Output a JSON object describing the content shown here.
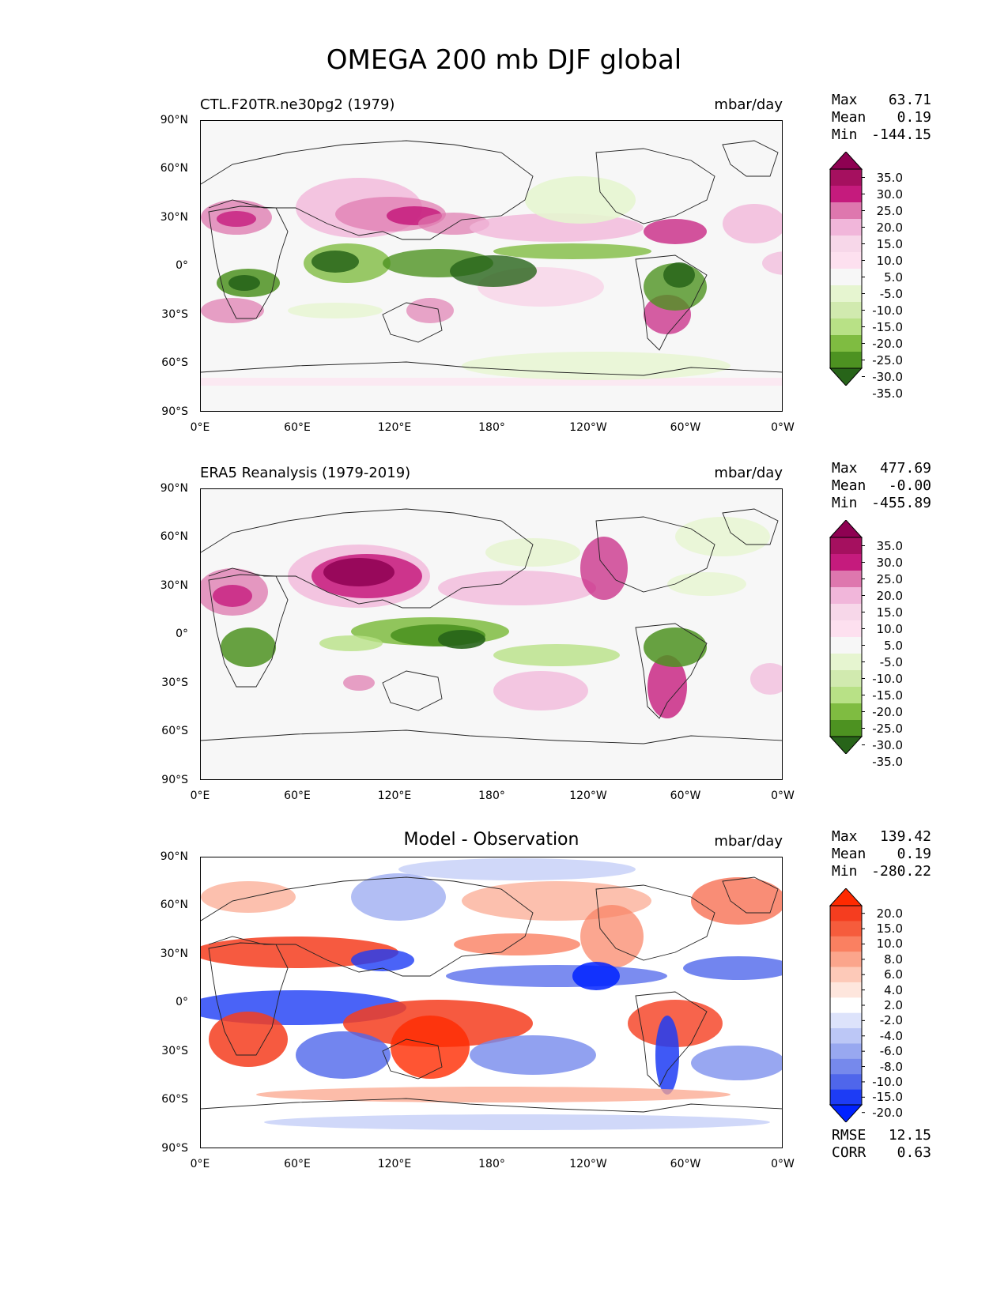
{
  "figure_title": "OMEGA 200 mb DJF global",
  "lat_ticks": [
    "90°N",
    "60°N",
    "30°N",
    "0°",
    "30°S",
    "60°S",
    "90°S"
  ],
  "lon_ticks": [
    "0°E",
    "60°E",
    "120°E",
    "180°",
    "120°W",
    "60°W",
    "0°W"
  ],
  "panels": [
    {
      "left_title": "CTL.F20TR.ne30pg2 (1979)",
      "center_title": "",
      "units": "mbar/day",
      "stats": [
        {
          "label": "Max",
          "value": "63.71"
        },
        {
          "label": "Mean",
          "value": "0.19"
        },
        {
          "label": "Min",
          "value": "-144.15"
        }
      ],
      "colorbar_ticks": [
        "35.0",
        "30.0",
        "25.0",
        "20.0",
        "15.0",
        "10.0",
        "5.0",
        "-5.0",
        "-10.0",
        "-15.0",
        "-20.0",
        "-25.0",
        "-30.0",
        "-35.0"
      ],
      "colors": [
        "#8e0152",
        "#a5105f",
        "#c51b7d",
        "#de77ae",
        "#f1b6da",
        "#f7d7e9",
        "#fde0ef",
        "#f7f7f7",
        "#e6f5d0",
        "#d1eaaf",
        "#b8e186",
        "#7fbc41",
        "#4d9221",
        "#276419"
      ]
    },
    {
      "left_title": "ERA5 Reanalysis (1979-2019)",
      "center_title": "",
      "units": "mbar/day",
      "stats": [
        {
          "label": "Max",
          "value": "477.69"
        },
        {
          "label": "Mean",
          "value": "-0.00"
        },
        {
          "label": "Min",
          "value": "-455.89"
        }
      ],
      "colorbar_ticks": [
        "35.0",
        "30.0",
        "25.0",
        "20.0",
        "15.0",
        "10.0",
        "5.0",
        "-5.0",
        "-10.0",
        "-15.0",
        "-20.0",
        "-25.0",
        "-30.0",
        "-35.0"
      ],
      "colors": [
        "#8e0152",
        "#a5105f",
        "#c51b7d",
        "#de77ae",
        "#f1b6da",
        "#f7d7e9",
        "#fde0ef",
        "#f7f7f7",
        "#e6f5d0",
        "#d1eaaf",
        "#b8e186",
        "#7fbc41",
        "#4d9221",
        "#276419"
      ]
    },
    {
      "left_title": "",
      "center_title": "Model - Observation",
      "units": "mbar/day",
      "stats": [
        {
          "label": "Max",
          "value": "139.42"
        },
        {
          "label": "Mean",
          "value": "0.19"
        },
        {
          "label": "Min",
          "value": "-280.22"
        }
      ],
      "colorbar_ticks": [
        "20.0",
        "15.0",
        "10.0",
        "8.0",
        "6.0",
        "4.0",
        "2.0",
        "-2.0",
        "-4.0",
        "-6.0",
        "-8.0",
        "-10.0",
        "-15.0",
        "-20.0"
      ],
      "colors": [
        "#ff2a00",
        "#f53d1f",
        "#f65c3c",
        "#fa8061",
        "#fba58c",
        "#fdc9b8",
        "#fee6dd",
        "#ffffff",
        "#dde3fb",
        "#bcc7f6",
        "#98a8f0",
        "#7689ec",
        "#4f66eb",
        "#1d3cf5",
        "#0022ff"
      ],
      "footer": [
        {
          "label": "RMSE",
          "value": "12.15"
        },
        {
          "label": "CORR",
          "value": "0.63"
        }
      ]
    }
  ]
}
